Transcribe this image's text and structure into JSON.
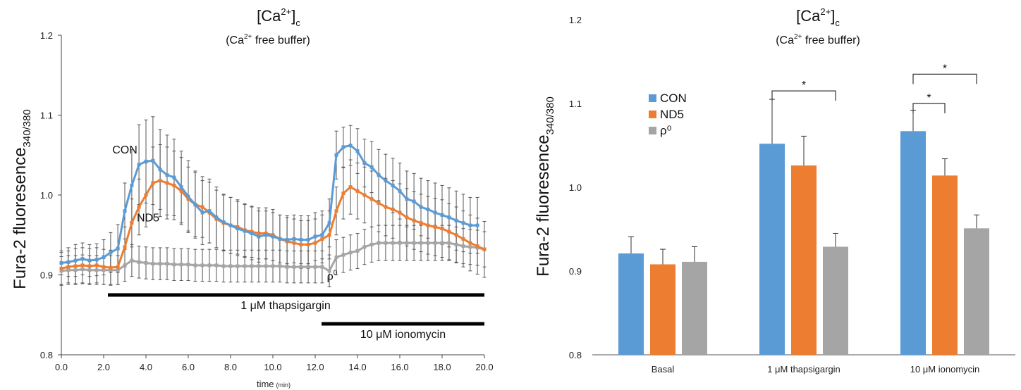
{
  "chart_data": [
    {
      "type": "line",
      "title_main": "[Ca",
      "title_sup": "2+",
      "title_close": "]",
      "title_sub": "c",
      "subtitle_a": "(Ca",
      "subtitle_sup": "2+",
      "subtitle_b": " free buffer)",
      "ylabel": "Fura-2 fluoresence",
      "ylabel_sub": "340/380",
      "xlabel": "time",
      "xlabel_unit": "(min)",
      "xlim": [
        0,
        20
      ],
      "ylim": [
        0.8,
        1.2
      ],
      "xticks": [
        "0.0",
        "2.0",
        "4.0",
        "6.0",
        "8.0",
        "10.0",
        "12.0",
        "14.0",
        "16.0",
        "18.0",
        "20.0"
      ],
      "yticks": [
        "0.8",
        "0.9",
        "1.0",
        "1.1",
        "1.2"
      ],
      "grid": false,
      "series": [
        {
          "name": "CON",
          "color": "#5b9bd5",
          "x": [
            0.0,
            0.33,
            0.67,
            1.0,
            1.33,
            1.67,
            2.0,
            2.33,
            2.67,
            3.0,
            3.33,
            3.67,
            4.0,
            4.33,
            4.67,
            5.0,
            5.33,
            5.67,
            6.0,
            6.33,
            6.67,
            7.0,
            7.33,
            7.67,
            8.0,
            8.33,
            8.67,
            9.0,
            9.33,
            9.67,
            10.0,
            10.33,
            10.67,
            11.0,
            11.33,
            11.67,
            12.0,
            12.33,
            12.67,
            13.0,
            13.33,
            13.67,
            14.0,
            14.33,
            14.67,
            15.0,
            15.33,
            15.67,
            16.0,
            16.33,
            16.67,
            17.0,
            17.33,
            17.67,
            18.0,
            18.33,
            18.67,
            19.0,
            19.33,
            19.67
          ],
          "y": [
            0.915,
            0.916,
            0.918,
            0.92,
            0.918,
            0.919,
            0.922,
            0.928,
            0.933,
            0.98,
            1.012,
            1.038,
            1.042,
            1.043,
            1.032,
            1.025,
            1.022,
            1.01,
            0.998,
            0.988,
            0.978,
            0.98,
            0.972,
            0.966,
            0.962,
            0.958,
            0.955,
            0.952,
            0.948,
            0.95,
            0.948,
            0.945,
            0.944,
            0.945,
            0.944,
            0.944,
            0.948,
            0.95,
            0.965,
            1.05,
            1.06,
            1.062,
            1.055,
            1.04,
            1.035,
            1.025,
            1.018,
            1.012,
            1.005,
            0.995,
            0.992,
            0.985,
            0.982,
            0.978,
            0.975,
            0.972,
            0.968,
            0.965,
            0.962,
            0.962
          ],
          "err": [
            0.015,
            0.018,
            0.02,
            0.02,
            0.02,
            0.02,
            0.022,
            0.025,
            0.03,
            0.035,
            0.045,
            0.05,
            0.052,
            0.055,
            0.05,
            0.05,
            0.048,
            0.045,
            0.045,
            0.042,
            0.04,
            0.04,
            0.038,
            0.035,
            0.035,
            0.034,
            0.033,
            0.033,
            0.032,
            0.03,
            0.03,
            0.03,
            0.03,
            0.03,
            0.03,
            0.03,
            0.03,
            0.03,
            0.03,
            0.03,
            0.025,
            0.025,
            0.028,
            0.03,
            0.032,
            0.032,
            0.033,
            0.034,
            0.035,
            0.035,
            0.035,
            0.036,
            0.036,
            0.037,
            0.037,
            0.037,
            0.037,
            0.036,
            0.035,
            0.035
          ]
        },
        {
          "name": "ND5",
          "color": "#ed7d31",
          "x": [
            0.0,
            0.33,
            0.67,
            1.0,
            1.33,
            1.67,
            2.0,
            2.33,
            2.67,
            3.0,
            3.33,
            3.67,
            4.0,
            4.33,
            4.67,
            5.0,
            5.33,
            5.67,
            6.0,
            6.33,
            6.67,
            7.0,
            7.33,
            7.67,
            8.0,
            8.33,
            8.67,
            9.0,
            9.33,
            9.67,
            10.0,
            10.33,
            10.67,
            11.0,
            11.33,
            11.67,
            12.0,
            12.33,
            12.67,
            13.0,
            13.33,
            13.67,
            14.0,
            14.33,
            14.67,
            15.0,
            15.33,
            15.67,
            16.0,
            16.33,
            16.67,
            17.0,
            17.33,
            17.67,
            18.0,
            18.33,
            18.67,
            19.0,
            19.33,
            19.67,
            20.0
          ],
          "y": [
            0.908,
            0.91,
            0.911,
            0.912,
            0.911,
            0.912,
            0.91,
            0.909,
            0.91,
            0.935,
            0.965,
            0.985,
            1.0,
            1.015,
            1.018,
            1.015,
            1.012,
            1.005,
            0.995,
            0.988,
            0.985,
            0.978,
            0.97,
            0.965,
            0.962,
            0.96,
            0.956,
            0.954,
            0.952,
            0.952,
            0.95,
            0.945,
            0.942,
            0.94,
            0.938,
            0.938,
            0.94,
            0.945,
            0.95,
            0.98,
            1.002,
            1.01,
            1.005,
            1.0,
            0.995,
            0.99,
            0.985,
            0.982,
            0.978,
            0.972,
            0.968,
            0.965,
            0.962,
            0.96,
            0.958,
            0.954,
            0.95,
            0.945,
            0.94,
            0.936,
            0.932
          ],
          "err": [
            0.02,
            0.02,
            0.022,
            0.022,
            0.022,
            0.022,
            0.022,
            0.022,
            0.022,
            0.025,
            0.03,
            0.035,
            0.04,
            0.045,
            0.045,
            0.045,
            0.043,
            0.042,
            0.04,
            0.04,
            0.038,
            0.038,
            0.036,
            0.035,
            0.035,
            0.034,
            0.033,
            0.032,
            0.032,
            0.032,
            0.032,
            0.03,
            0.03,
            0.03,
            0.03,
            0.03,
            0.03,
            0.03,
            0.03,
            0.03,
            0.032,
            0.034,
            0.035,
            0.035,
            0.035,
            0.036,
            0.036,
            0.036,
            0.036,
            0.036,
            0.036,
            0.036,
            0.036,
            0.036,
            0.036,
            0.035,
            0.035,
            0.035,
            0.035,
            0.035,
            0.035
          ]
        },
        {
          "name": "ρ⁰",
          "color": "#a5a5a5",
          "x": [
            0.0,
            0.33,
            0.67,
            1.0,
            1.33,
            1.67,
            2.0,
            2.33,
            2.67,
            3.0,
            3.33,
            3.67,
            4.0,
            4.33,
            4.67,
            5.0,
            5.33,
            5.67,
            6.0,
            6.33,
            6.67,
            7.0,
            7.33,
            7.67,
            8.0,
            8.33,
            8.67,
            9.0,
            9.33,
            9.67,
            10.0,
            10.33,
            10.67,
            11.0,
            11.33,
            11.67,
            12.0,
            12.33,
            12.67,
            13.0,
            13.33,
            13.67,
            14.0,
            14.33,
            14.67,
            15.0,
            15.33,
            15.67,
            16.0,
            16.33,
            16.67,
            17.0,
            17.33,
            17.67,
            18.0,
            18.33,
            18.67,
            19.0,
            19.33,
            19.67,
            20.0
          ],
          "y": [
            0.905,
            0.906,
            0.906,
            0.907,
            0.906,
            0.906,
            0.906,
            0.906,
            0.906,
            0.912,
            0.918,
            0.916,
            0.915,
            0.914,
            0.914,
            0.914,
            0.913,
            0.913,
            0.913,
            0.912,
            0.912,
            0.912,
            0.912,
            0.911,
            0.911,
            0.911,
            0.911,
            0.911,
            0.911,
            0.911,
            0.911,
            0.911,
            0.91,
            0.91,
            0.91,
            0.91,
            0.91,
            0.91,
            0.905,
            0.922,
            0.925,
            0.928,
            0.93,
            0.935,
            0.938,
            0.94,
            0.94,
            0.94,
            0.94,
            0.94,
            0.94,
            0.94,
            0.94,
            0.94,
            0.94,
            0.94,
            0.938,
            0.936,
            0.935,
            0.934,
            0.932
          ],
          "err": [
            0.018,
            0.018,
            0.018,
            0.018,
            0.018,
            0.018,
            0.018,
            0.018,
            0.018,
            0.02,
            0.02,
            0.02,
            0.02,
            0.02,
            0.02,
            0.02,
            0.02,
            0.02,
            0.02,
            0.02,
            0.02,
            0.02,
            0.02,
            0.02,
            0.02,
            0.02,
            0.02,
            0.02,
            0.02,
            0.02,
            0.02,
            0.02,
            0.02,
            0.02,
            0.02,
            0.02,
            0.02,
            0.02,
            0.02,
            0.022,
            0.022,
            0.022,
            0.022,
            0.022,
            0.022,
            0.022,
            0.022,
            0.022,
            0.022,
            0.022,
            0.022,
            0.022,
            0.022,
            0.022,
            0.022,
            0.022,
            0.022,
            0.022,
            0.022,
            0.022,
            0.022
          ]
        }
      ],
      "annotations": [
        {
          "text": "CON",
          "x": 3.0,
          "y": 1.052
        },
        {
          "text": "ND5",
          "x": 4.1,
          "y": 0.967
        },
        {
          "text": "ρ",
          "sup": "0",
          "x": 12.8,
          "y": 0.894
        }
      ],
      "treatments": [
        {
          "label": "1 μM thapsigargin",
          "x_start": 2.2,
          "x_end": 20.0
        },
        {
          "label": "10 μM ionomycin",
          "x_start": 12.3,
          "x_end": 20.0
        }
      ]
    },
    {
      "type": "bar",
      "title_main": "[Ca",
      "title_sup": "2+",
      "title_close": "]",
      "title_sub": "c",
      "subtitle_a": "(Ca",
      "subtitle_sup": "2+",
      "subtitle_b": " free buffer)",
      "ylabel": "Fura-2 fluoresence",
      "ylabel_sub": "340/380",
      "ylim": [
        0.8,
        1.2
      ],
      "yticks": [
        "0.8",
        "0.9",
        "1.0",
        "1.1",
        "1.2"
      ],
      "categories": [
        "Basal",
        "1 μM thapsigargin",
        "10 μM ionomycin"
      ],
      "legend_position": "upper-left",
      "grid": false,
      "series": [
        {
          "name": "CON",
          "color": "#5b9bd5",
          "values": [
            0.921,
            1.052,
            1.067
          ],
          "err": [
            0.02,
            0.053,
            0.025
          ]
        },
        {
          "name": "ND5",
          "color": "#ed7d31",
          "values": [
            0.908,
            1.026,
            1.014
          ],
          "err": [
            0.018,
            0.035,
            0.02
          ]
        },
        {
          "name": "ρ⁰",
          "color": "#a5a5a5",
          "values": [
            0.911,
            0.929,
            0.951
          ],
          "err": [
            0.018,
            0.016,
            0.016
          ]
        }
      ],
      "significance": [
        {
          "group": 1,
          "from": 0,
          "to": 2,
          "label": "*",
          "level": 1.115
        },
        {
          "group": 2,
          "from": 0,
          "to": 1,
          "label": "*",
          "level": 1.1
        },
        {
          "group": 2,
          "from": 0,
          "to": 2,
          "label": "*",
          "level": 1.135
        }
      ]
    }
  ]
}
